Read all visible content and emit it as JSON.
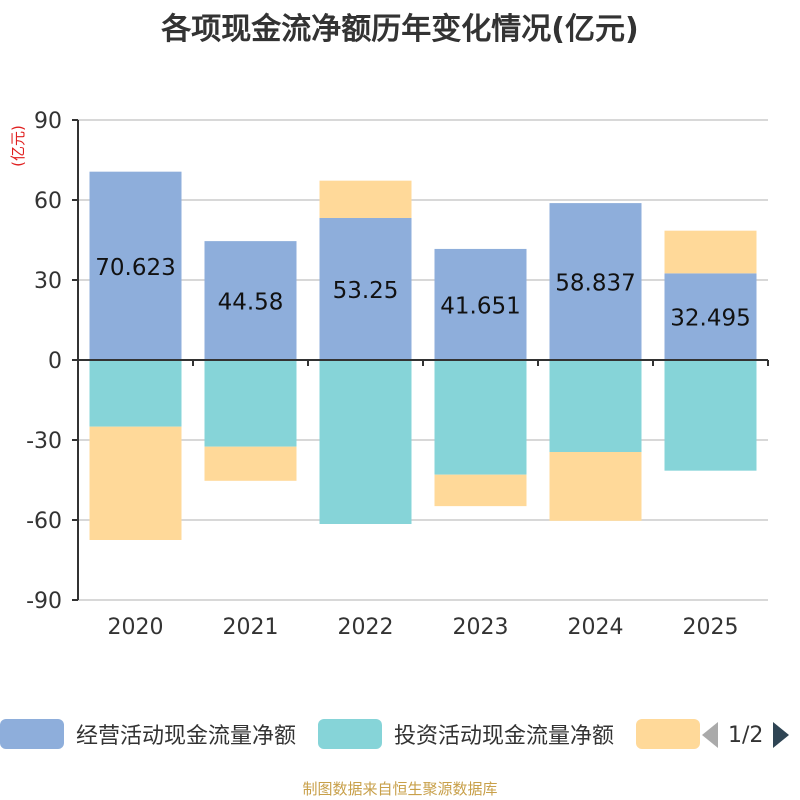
{
  "chart_data": {
    "type": "bar",
    "title": "各项现金流净额历年变化情况(亿元)",
    "ylabel": "(亿元)",
    "xlabel": "",
    "categories": [
      "2020",
      "2021",
      "2022",
      "2023",
      "2024",
      "2025"
    ],
    "series": [
      {
        "name": "经营活动现金流量净额",
        "color": "#8eaedb",
        "values": [
          70.623,
          44.58,
          53.25,
          41.651,
          58.837,
          32.495
        ],
        "labels": [
          "70.623",
          "44.58",
          "53.25",
          "41.651",
          "58.837",
          "32.495"
        ]
      },
      {
        "name": "投资活动现金流量净额",
        "color": "#86d4d8",
        "values": [
          -25,
          -32.5,
          -61.5,
          -43,
          -34.5,
          -41.5
        ]
      },
      {
        "name": "",
        "color": "#ffd999",
        "values": [
          -42.5,
          -12.8,
          14,
          -11.8,
          -25.8,
          16
        ]
      }
    ],
    "ylim": [
      -90,
      90
    ],
    "yticks": [
      90,
      60,
      30,
      0,
      -30,
      -60,
      -90
    ],
    "ytick_labels": [
      "90",
      "60",
      "30",
      "0",
      "-30",
      "-60",
      "-90"
    ],
    "grid": true,
    "stacked": true,
    "legend_position": "bottom"
  },
  "legend": {
    "items": [
      {
        "label": "经营活动现金流量净额",
        "color": "#8eaedb"
      },
      {
        "label": "投资活动现金流量净额",
        "color": "#86d4d8"
      },
      {
        "label": "",
        "color": "#ffd999"
      }
    ],
    "page_text": "1/2"
  },
  "footer": "制图数据来自恒生聚源数据库"
}
